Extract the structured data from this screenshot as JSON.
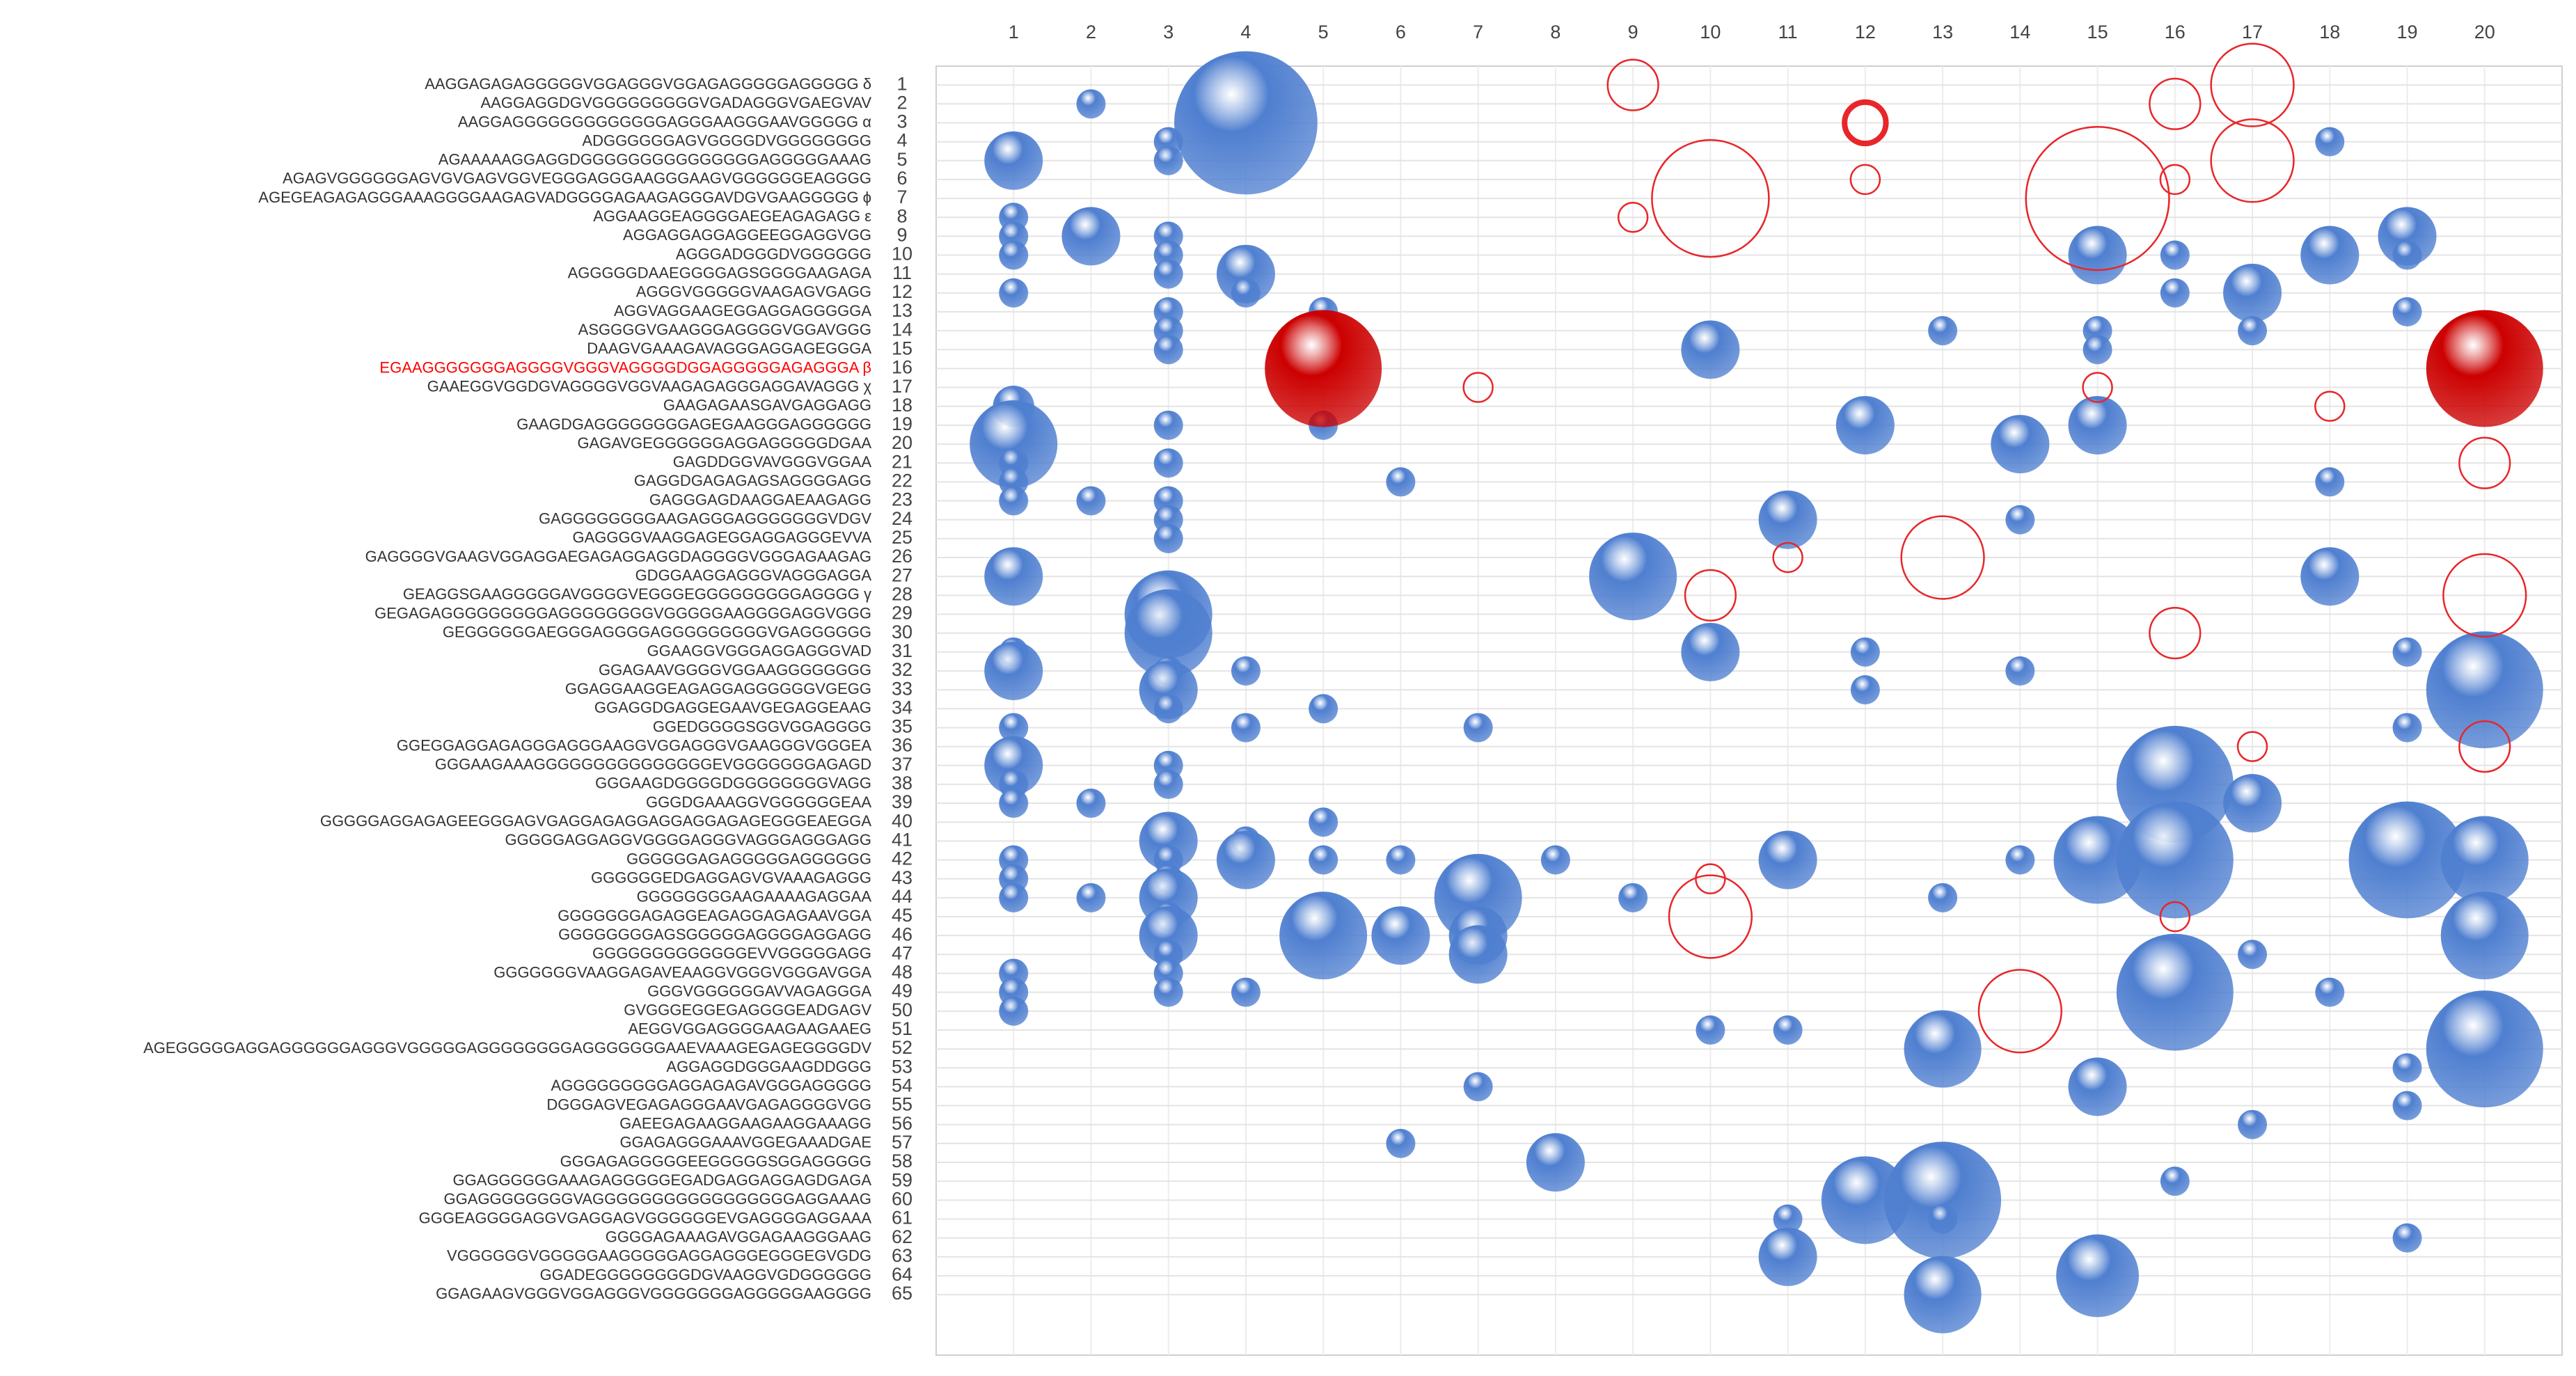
{
  "chart_data": {
    "type": "bubble",
    "xlim": [
      0,
      21
    ],
    "xticks": [
      1,
      2,
      3,
      4,
      5,
      6,
      7,
      8,
      9,
      10,
      11,
      12,
      13,
      14,
      15,
      16,
      17,
      18,
      19,
      20
    ],
    "ylim": [
      68.2,
      0
    ],
    "yticks": [
      1,
      2,
      3,
      4,
      5,
      6,
      7,
      8,
      9,
      10,
      11,
      12,
      13,
      14,
      15,
      16,
      17,
      18,
      19,
      20,
      21,
      22,
      23,
      24,
      25,
      26,
      27,
      28,
      29,
      30,
      31,
      32,
      33,
      34,
      35,
      36,
      37,
      38,
      39,
      40,
      41,
      42,
      43,
      44,
      45,
      46,
      47,
      48,
      49,
      50,
      51,
      52,
      53,
      54,
      55,
      56,
      57,
      58,
      59,
      60,
      61,
      62,
      63,
      64,
      65
    ],
    "grid": true,
    "highlight_rows": [
      16
    ],
    "highlight_color": "#ff0000",
    "sequences": [
      "AAGGAGAGAGGGGGVGGAGGGVGGAGAGGGGGAGGGGG δ",
      "AAGGAGGDGVGGGGGGGGGVGADAGGGVGAEGVAV",
      "AAGGAGGGGGGGGGGGGGAGGGAAGGGAAVGGGGG α",
      "ADGGGGGGAGVGGGGDVGGGGGGGG",
      "AGAAAAAGGAGGDGGGGGGGGGGGGGGGAGGGGGAAAG",
      "AGAGVGGGGGGAGVGVGAGVGGVEGGGAGGGAAGGGAAGVGGGGGGEAGGGG",
      "AGEGEAGAGAGGGAAAGGGGAAGAGVADGGGGAGAAGAGGGAVDGVGAAGGGGG ϕ",
      "AGGAAGGEAGGGGAEGEAGAGAGG ε",
      "AGGAGGAGGAGGEEGGAGGVGG",
      "AGGGADGGGDVGGGGGG",
      "AGGGGGDAAEGGGGAGSGGGGAAGAGA",
      "AGGGVGGGGGVAAGAGVGAGG",
      "AGGVAGGAAGEGGAGGAGGGGGA",
      "ASGGGGVGAAGGGAGGGGVGGAVGGG",
      "DAAGVGAAAGAVAGGGAGGAGEGGGA",
      "EGAAGGGGGGGAGGGGVGGGVAGGGGDGGAGGGGGAGAGGGA β",
      "GAAEGGVGGDGVAGGGGVGGVAAGAGAGGGAGGAVAGGG χ",
      "GAAGAGAASGAVGAGGAGG",
      "GAAGDGAGGGGGGGGAGEGAAGGGAGGGGGG",
      "GAGAVGEGGGGGGAGGAGGGGGDGAA",
      "GAGDDGGVAVGGGVGGAA",
      "GAGGDGAGAGAGSAGGGGAGG",
      "GAGGGAGDAAGGAEAAGAGG",
      "GAGGGGGGGGAAGAGGGAGGGGGGGVDGV",
      "GAGGGGVAAGGAGEGGAGGAGGGEVVA",
      "GAGGGGVGAAGVGGAGGAEGAGAGGAGGDAGGGGVGGGAGAAGAG",
      "GDGGAAGGAGGGVAGGGAGGA",
      "GEAGGSGAAGGGGGAVGGGGVEGGGEGGGGGGGGGAGGGG γ",
      "GEGAGAGGGGGGGGGAGGGGGGGGVGGGGGAAGGGGAGGVGGG",
      "GEGGGGGGAEGGGAGGGGAGGGGGGGGGVGAGGGGGG",
      "GGAAGGVGGGAGGAGGGVAD",
      "GGAGAAVGGGGVGGAAGGGGGGGG",
      "GGAGGAAGGEAGAGGAGGGGGGVGEGG",
      "GGAGGDGAGGEGAAVGEGAGGEAAG",
      "GGEDGGGGSGGVGGAGGGG",
      "GGEGGAGGAGAGGGAGGGAAGGVGGAGGGVGAAGGGVGGGEA",
      "GGGAAGAAAGGGGGGGGGGGGGGGEVGGGGGGGAGAGD",
      "GGGAAGDGGGGDGGGGGGGGVAGG",
      "GGGDGAAAGGVGGGGGGEAA",
      "GGGGGAGGAGAGEEGGGAGVGAGGAGAGGAGGAGGAGAGEGGGEAEGGA",
      "GGGGGAGGAGGVGGGGAGGGVAGGGAGGGAGG",
      "GGGGGGAGAGGGGGAGGGGGG",
      "GGGGGGEDGAGGAGVGVAAAGAGGG",
      "GGGGGGGGAAGAAAAGAGGAA",
      "GGGGGGGAGAGGEAGAGGAGAGAAVGGA",
      "GGGGGGGGAGSGGGGGAGGGGAGGAGG",
      "GGGGGGGGGGGGGEVVGGGGGAGG",
      "GGGGGGGVAAGGAGAVEAAGGVGGGVGGGAVGGA",
      "GGGVGGGGGGAVVAGAGGGA",
      "GVGGGEGGEGAGGGGEADGAGV",
      "AEGGVGGAGGGGAAGAAGAAEG",
      "AGEGGGGGAGGAGGGGGGAGGGVGGGGGAGGGGGGGGAGGGGGGGAAEVAAAGEGAGEGGGGDV",
      "AGGAGGDGGGAAGDDGGG",
      "AGGGGGGGGGAGGAGAGAVGGGAGGGGG",
      "DGGGAGVEGAGAGGGAAVGAGAGGGGVGG",
      "GAEEGAGAAGGAAGAAGGAAAGG",
      "GGAGAGGGAAAVGGEGAAADGAE",
      "GGGAGAGGGGGEEGGGGGSGGAGGGGG",
      "GGAGGGGGGAAAGAGGGGGEGADGAGGAGGAGDGAGA",
      "GGAGGGGGGGGVAGGGGGGGGGGGGGGGGGAGGAAAG",
      "GGGEAGGGGAGGVGAGGAGVGGGGGGEVGAGGGGAGGAAA",
      "GGGGAGAAAGAVGGAGAAGGGAAG",
      "VGGGGGGVGGGGGAAGGGGGAGGAGGGEGGGEGVGDG",
      "GGADEGGGGGGGGDGVAAGGVGDGGGGGG",
      "GGAGAAGVGGGVGGAGGGVGGGGGGGAGGGGGAAGGGG"
    ],
    "series": [
      {
        "color": "#4f7fd0",
        "fill": true,
        "line_width": 0,
        "x": [
          1,
          1,
          1,
          1,
          1,
          1,
          1,
          1,
          1,
          1,
          1,
          1,
          1,
          1,
          1,
          1,
          1,
          1,
          1,
          1,
          1,
          1,
          1,
          1,
          1,
          1,
          2,
          2,
          2,
          2,
          2,
          3,
          3,
          3,
          3,
          3,
          3,
          3,
          3,
          3,
          3,
          3,
          3,
          3,
          3,
          3,
          3,
          3,
          3,
          3,
          3,
          3,
          3,
          3,
          3,
          3,
          3,
          3,
          3,
          3,
          3,
          4,
          4,
          4,
          4,
          4,
          4,
          4,
          4,
          5,
          5,
          5,
          5,
          5,
          5,
          6,
          6,
          6,
          6,
          7,
          7,
          7,
          7,
          7,
          8,
          8,
          9,
          9,
          10,
          10,
          10,
          11,
          11,
          11,
          11,
          11,
          12,
          12,
          12,
          12,
          13,
          13,
          13,
          13,
          13,
          13,
          14,
          14,
          14,
          14,
          15,
          15,
          15,
          15,
          15,
          15,
          15,
          16,
          16,
          16,
          16,
          16,
          16,
          17,
          17,
          17,
          17,
          17,
          18,
          18,
          18,
          18,
          18,
          19,
          19,
          19,
          19,
          19,
          19,
          19,
          19,
          19,
          20,
          20,
          20,
          20
        ],
        "y": [
          5,
          8,
          9,
          10,
          12,
          18,
          20,
          21,
          22,
          23,
          27,
          31,
          32,
          35,
          37,
          38,
          39,
          42,
          43,
          44,
          48,
          49,
          50,
          0,
          0,
          0,
          2,
          9,
          23,
          39,
          44,
          4,
          5,
          9,
          10,
          11,
          13,
          14,
          15,
          19,
          21,
          23,
          24,
          25,
          29,
          30,
          32,
          33,
          34,
          37,
          38,
          41,
          42,
          43,
          44,
          45,
          46,
          47,
          48,
          49,
          0,
          3,
          11,
          12,
          32,
          35,
          41,
          42,
          49,
          13,
          19,
          34,
          40,
          42,
          46,
          22,
          42,
          46,
          57,
          35,
          44,
          46,
          47,
          54,
          42,
          58,
          27,
          44,
          15,
          31,
          51,
          24,
          42,
          51,
          61,
          63,
          19,
          31,
          33,
          60,
          14,
          44,
          52,
          60,
          61,
          65,
          20,
          24,
          32,
          42,
          10,
          14,
          15,
          19,
          42,
          54,
          64,
          10,
          12,
          38,
          42,
          49,
          59,
          12,
          14,
          39,
          47,
          56,
          4,
          10,
          22,
          27,
          49,
          9,
          10,
          13,
          31,
          35,
          42,
          53,
          55,
          62,
          33,
          42,
          46,
          52
        ],
        "size": [
          4,
          1,
          1,
          1,
          1,
          2,
          9,
          1,
          1,
          1,
          4,
          1,
          4,
          1,
          4,
          1,
          1,
          1,
          1,
          1,
          1,
          1,
          1,
          0,
          0,
          0,
          1,
          4,
          1,
          1,
          1,
          1,
          1,
          1,
          1,
          1,
          1,
          1,
          1,
          1,
          1,
          1,
          1,
          1,
          9,
          9,
          1,
          4,
          1,
          1,
          1,
          4,
          1,
          1,
          4,
          1,
          4,
          1,
          1,
          1,
          0,
          24,
          4,
          1,
          1,
          1,
          1,
          4,
          1,
          1,
          1,
          1,
          1,
          1,
          9,
          1,
          1,
          4,
          1,
          1,
          9,
          4,
          4,
          1,
          1,
          4,
          9,
          1,
          4,
          4,
          1,
          4,
          4,
          1,
          1,
          4,
          4,
          1,
          1,
          9,
          1,
          1,
          7,
          16,
          1,
          7,
          4,
          1,
          1,
          1,
          4,
          1,
          1,
          4,
          9,
          4,
          8,
          1,
          1,
          16,
          16,
          16,
          1,
          4,
          1,
          4,
          1,
          1,
          1,
          4,
          1,
          4,
          1,
          4,
          1,
          1,
          1,
          1,
          16,
          1,
          1,
          1,
          16,
          9,
          9,
          16
        ]
      },
      {
        "color": "#cc0000",
        "fill": true,
        "line_width": 0,
        "x": [
          5,
          20
        ],
        "y": [
          16,
          16
        ],
        "size": [
          16,
          16
        ]
      },
      {
        "color": "#e8262a",
        "fill": false,
        "line_width": 2.5,
        "x": [
          9,
          12,
          16,
          17,
          17,
          16,
          9,
          10,
          15,
          7,
          15,
          18,
          20,
          10,
          11,
          13,
          20,
          16,
          17,
          20,
          10,
          10,
          16,
          14
        ],
        "y": [
          1,
          6,
          2,
          1,
          5,
          6,
          8,
          7,
          7,
          17,
          17,
          18,
          21,
          28,
          26,
          26,
          28,
          30,
          36,
          36,
          43,
          45,
          45,
          50
        ],
        "size": [
          3,
          1,
          3,
          8,
          8,
          1,
          1,
          16,
          24,
          1,
          1,
          1,
          3,
          3,
          1,
          8,
          8,
          3,
          1,
          3,
          1,
          8,
          1,
          8
        ]
      },
      {
        "color": "#e8262a",
        "fill": false,
        "line_width": 8,
        "x": [
          12
        ],
        "y": [
          3
        ],
        "size": [
          2
        ]
      }
    ]
  }
}
